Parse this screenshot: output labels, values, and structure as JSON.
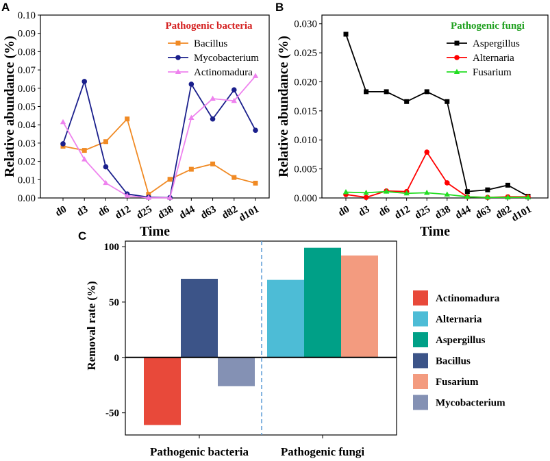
{
  "chart_data": [
    {
      "panel": "A",
      "type": "line",
      "legend_title": "Pathogenic bacteria",
      "xlabel": "Time",
      "ylabel": "Relative abundance (%)",
      "categories": [
        "d0",
        "d3",
        "d6",
        "d12",
        "d25",
        "d38",
        "d44",
        "d63",
        "d82",
        "d101"
      ],
      "ylim": [
        0,
        0.1
      ],
      "yticks": [
        "0.00",
        "0.01",
        "0.02",
        "0.03",
        "0.04",
        "0.05",
        "0.06",
        "0.07",
        "0.08",
        "0.09",
        "0.10"
      ],
      "series": [
        {
          "name": "Bacillus",
          "color": "#f08a24",
          "marker": "square",
          "values": [
            0.0283,
            0.026,
            0.0308,
            0.0432,
            0.002,
            0.0102,
            0.0157,
            0.0186,
            0.0112,
            0.0081
          ]
        },
        {
          "name": "Mycobacterium",
          "color": "#1a1f8c",
          "marker": "circle",
          "values": [
            0.0296,
            0.0637,
            0.017,
            0.0022,
            0.0004,
            0.0002,
            0.0622,
            0.0432,
            0.0591,
            0.037
          ]
        },
        {
          "name": "Actinomadura",
          "color": "#ee82ee",
          "marker": "triangle",
          "values": [
            0.0415,
            0.0211,
            0.0082,
            0.0012,
            0.0001,
            0.0001,
            0.0438,
            0.0543,
            0.0531,
            0.0667
          ]
        }
      ]
    },
    {
      "panel": "B",
      "type": "line",
      "legend_title": "Pathogenic fungi",
      "xlabel": "Time",
      "ylabel": "Relative abundance (%)",
      "categories": [
        "d0",
        "d3",
        "d6",
        "d12",
        "d25",
        "d38",
        "d44",
        "d63",
        "d82",
        "d101"
      ],
      "ylim": [
        0,
        0.0315
      ],
      "yticks": [
        "0.000",
        "0.005",
        "0.010",
        "0.015",
        "0.020",
        "0.025",
        "0.030"
      ],
      "series": [
        {
          "name": "Aspergillus",
          "color": "#000000",
          "marker": "square",
          "values": [
            0.0282,
            0.0183,
            0.0183,
            0.0166,
            0.0183,
            0.0166,
            0.0011,
            0.0014,
            0.0022,
            0.0003
          ]
        },
        {
          "name": "Alternaria",
          "color": "#ff0000",
          "marker": "circle",
          "values": [
            0.0006,
            0.0001,
            0.0012,
            0.0011,
            0.0079,
            0.0026,
            0.0002,
            0.0001,
            0.0002,
            0.0002
          ]
        },
        {
          "name": "Fusarium",
          "color": "#22dd22",
          "marker": "triangle",
          "values": [
            0.001,
            0.0009,
            0.0011,
            0.0008,
            0.0009,
            0.0006,
            0.0002,
            0.0001,
            0.0001,
            0.0001
          ]
        }
      ]
    },
    {
      "panel": "C",
      "type": "bar",
      "ylabel": "Removal rate (%)",
      "ylim": [
        -70,
        105
      ],
      "yticks": [
        "-50",
        "0",
        "50",
        "100"
      ],
      "groups": [
        {
          "label": "Pathogenic bacteria",
          "bars": [
            {
              "name": "Actinomadura",
              "value": -61
            },
            {
              "name": "Bacillus",
              "value": 71
            },
            {
              "name": "Mycobacterium",
              "value": -26
            }
          ]
        },
        {
          "label": "Pathogenic fungi",
          "bars": [
            {
              "name": "Alternaria",
              "value": 70
            },
            {
              "name": "Aspergillus",
              "value": 99
            },
            {
              "name": "Fusarium",
              "value": 92
            }
          ]
        }
      ],
      "legend": [
        {
          "name": "Actinomadura",
          "color": "#e8493a"
        },
        {
          "name": "Alternaria",
          "color": "#4dbcd6"
        },
        {
          "name": "Aspergillus",
          "color": "#00a087"
        },
        {
          "name": "Bacillus",
          "color": "#3c5488"
        },
        {
          "name": "Fusarium",
          "color": "#f39b7f"
        },
        {
          "name": "Mycobacterium",
          "color": "#8491b4"
        }
      ]
    }
  ]
}
